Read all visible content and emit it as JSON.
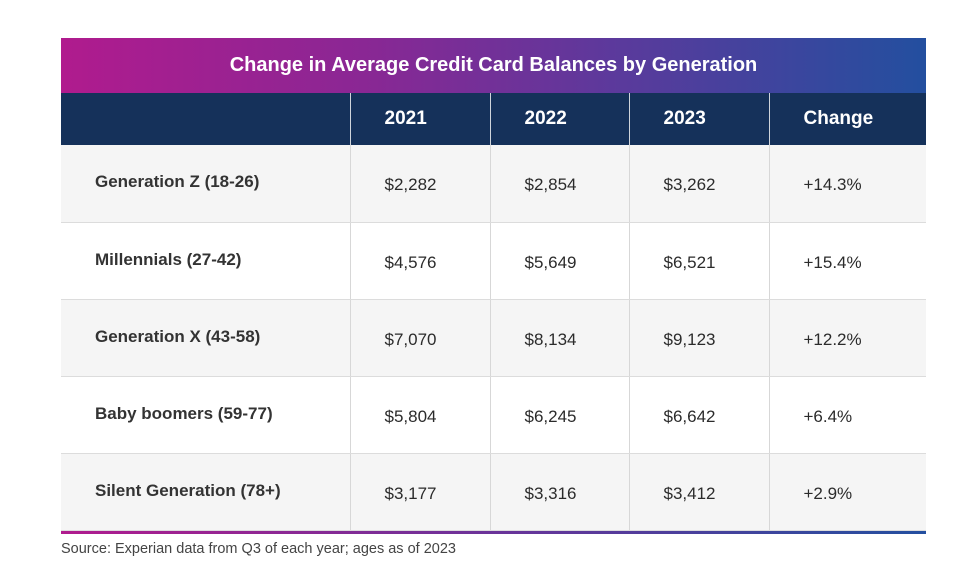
{
  "chart_data": {
    "type": "table",
    "title": "Change in Average Credit Card Balances by Generation",
    "columns": [
      "",
      "2021",
      "2022",
      "2023",
      "Change"
    ],
    "rows": [
      {
        "label": "Generation Z (18-26)",
        "values": [
          "$2,282",
          "$2,854",
          "$3,262",
          "+14.3%"
        ]
      },
      {
        "label": "Millennials (27-42)",
        "values": [
          "$4,576",
          "$5,649",
          "$6,521",
          "+15.4%"
        ]
      },
      {
        "label": "Generation X (43-58)",
        "values": [
          "$7,070",
          "$8,134",
          "$9,123",
          "+12.2%"
        ]
      },
      {
        "label": "Baby boomers (59-77)",
        "values": [
          "$5,804",
          "$6,245",
          "$6,642",
          "+6.4%"
        ]
      },
      {
        "label": "Silent Generation (78+)",
        "values": [
          "$3,177",
          "$3,316",
          "$3,412",
          "+2.9%"
        ]
      }
    ],
    "source": "Source: Experian data from Q3 of each year; ages as of 2023"
  },
  "colors": {
    "header_bg": "#15315a",
    "title_gradient_start": "#b01b8e",
    "title_gradient_end": "#234f9f",
    "row_alt_bg": "#f5f5f5"
  }
}
